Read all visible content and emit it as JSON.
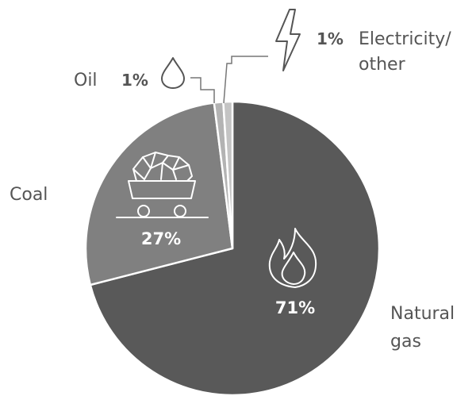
{
  "chart_data": {
    "type": "pie",
    "slices": [
      {
        "label": "Natural gas",
        "label_lines": [
          "Natural",
          "gas"
        ],
        "value": 71,
        "value_label": "71%",
        "color": "#595959",
        "icon": "flame-icon"
      },
      {
        "label": "Coal",
        "label_lines": [
          "Coal"
        ],
        "value": 27,
        "value_label": "27%",
        "color": "#808080",
        "icon": "mine-cart-icon"
      },
      {
        "label": "Oil",
        "label_lines": [
          "Oil"
        ],
        "value": 1,
        "value_label": "1%",
        "color": "#b3b3b3",
        "icon": "droplet-icon"
      },
      {
        "label": "Electricity/ other",
        "label_lines": [
          "Electricity/",
          "other"
        ],
        "value": 1,
        "value_label": "1%",
        "color": "#c4c4c4",
        "icon": "lightning-icon"
      }
    ]
  }
}
